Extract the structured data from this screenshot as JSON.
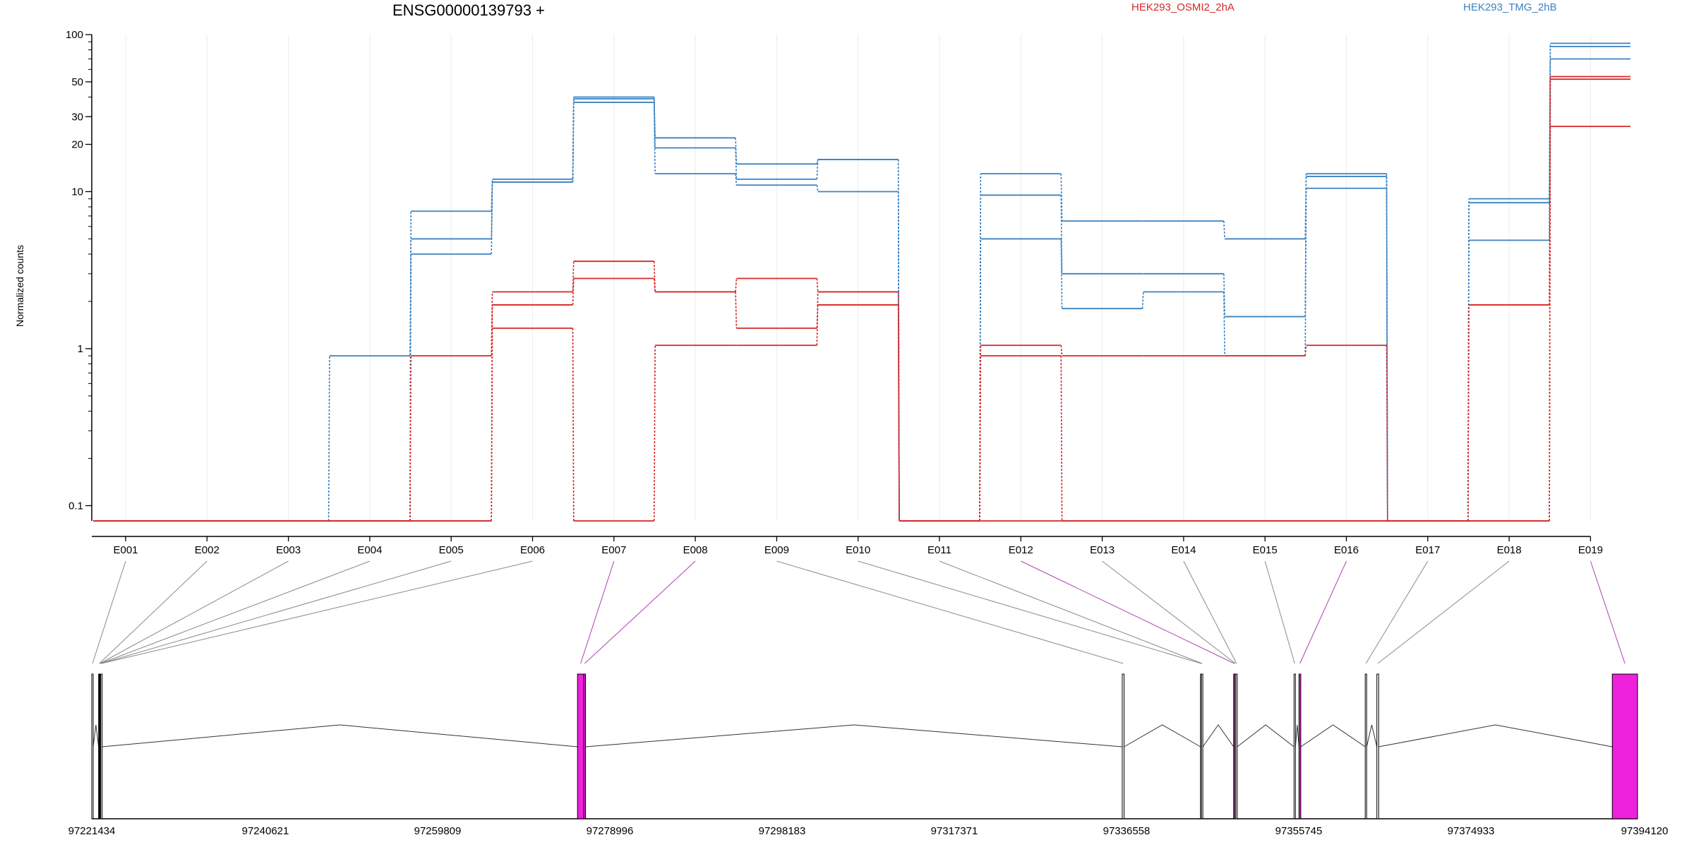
{
  "title": "ENSG00000139793 +",
  "legend": [
    {
      "label": "HEK293_OSMI2_2hA",
      "color": "#d62728"
    },
    {
      "label": "HEK293_TMG_2hB",
      "color": "#3a82c1"
    }
  ],
  "chart_data": {
    "type": "line",
    "scale": "log",
    "ylabel": "Normalized counts",
    "yticks": [
      "100",
      "50",
      "30",
      "20",
      "10",
      "1",
      "0.1"
    ],
    "ytick_values": [
      100,
      50,
      30,
      20,
      10,
      1,
      0.1
    ],
    "ylim": [
      0.08,
      100
    ],
    "categories": [
      "E001",
      "E002",
      "E003",
      "E004",
      "E005",
      "E006",
      "E007",
      "E008",
      "E009",
      "E010",
      "E011",
      "E012",
      "E013",
      "E014",
      "E015",
      "E016",
      "E017",
      "E018",
      "E019"
    ],
    "series": [
      {
        "color": "#3a82c1",
        "values": [
          0.08,
          0.08,
          0.08,
          0.08,
          7.5,
          11.5,
          39,
          22,
          15,
          16,
          0.08,
          13,
          6.5,
          6.5,
          5,
          13,
          0.08,
          9,
          88
        ]
      },
      {
        "color": "#3a82c1",
        "values": [
          0.08,
          0.08,
          0.08,
          0.08,
          5,
          12,
          40,
          19,
          12,
          16,
          0.08,
          9.5,
          3,
          3,
          1.6,
          12.5,
          0.08,
          8.5,
          84
        ]
      },
      {
        "color": "#3a82c1",
        "values": [
          0.08,
          0.08,
          0.08,
          0.9,
          4,
          11.5,
          37,
          13,
          11,
          10,
          0.08,
          5,
          1.8,
          2.3,
          0.9,
          10.5,
          0.08,
          4.9,
          70
        ]
      },
      {
        "color": "#d62728",
        "values": [
          0.08,
          0.08,
          0.08,
          0.08,
          0.9,
          2.3,
          3.6,
          2.3,
          2.8,
          2.3,
          0.08,
          1.05,
          0.9,
          0.9,
          0.9,
          1.05,
          0.08,
          0.08,
          54
        ]
      },
      {
        "color": "#d62728",
        "values": [
          0.08,
          0.08,
          0.08,
          0.08,
          0.08,
          1.9,
          2.8,
          2.3,
          1.35,
          1.9,
          0.08,
          0.9,
          0.08,
          0.08,
          0.08,
          0.08,
          0.08,
          1.9,
          52
        ]
      },
      {
        "color": "#d62728",
        "values": [
          0.08,
          0.08,
          0.08,
          0.08,
          0.08,
          1.35,
          0.08,
          1.05,
          1.05,
          2.3,
          0.08,
          0.08,
          0.08,
          0.08,
          0.08,
          0.08,
          0.08,
          0.08,
          26
        ]
      }
    ],
    "gene_model": {
      "coord_labels": [
        "97221434",
        "97240621",
        "97259809",
        "97278996",
        "97298183",
        "97317371",
        "97336558",
        "97355745",
        "97374933",
        "97394120"
      ],
      "coord_range": [
        97221434,
        97394120
      ],
      "exon_color": "#ee22dd",
      "exons": [
        {
          "id": "E001",
          "start": 97221434,
          "end": 97221500,
          "highlight": false
        },
        {
          "id": "E002",
          "start": 97222200,
          "end": 97222260,
          "highlight": false
        },
        {
          "id": "E003",
          "start": 97222260,
          "end": 97222320,
          "highlight": false
        },
        {
          "id": "E004",
          "start": 97222320,
          "end": 97222380,
          "highlight": false
        },
        {
          "id": "E005",
          "start": 97222380,
          "end": 97222440,
          "highlight": false
        },
        {
          "id": "E006",
          "start": 97222440,
          "end": 97222500,
          "highlight": false
        },
        {
          "id": "E007",
          "start": 97275700,
          "end": 97276400,
          "highlight": true
        },
        {
          "id": "E008",
          "start": 97276400,
          "end": 97276600,
          "highlight": true
        },
        {
          "id": "E009",
          "start": 97336558,
          "end": 97336760,
          "highlight": false
        },
        {
          "id": "E010",
          "start": 97345300,
          "end": 97345400,
          "highlight": false
        },
        {
          "id": "E011",
          "start": 97345400,
          "end": 97345500,
          "highlight": false
        },
        {
          "id": "E012",
          "start": 97349000,
          "end": 97349120,
          "highlight": true
        },
        {
          "id": "E013",
          "start": 97349120,
          "end": 97349240,
          "highlight": false
        },
        {
          "id": "E014",
          "start": 97349240,
          "end": 97349360,
          "highlight": false
        },
        {
          "id": "E015",
          "start": 97355745,
          "end": 97355900,
          "highlight": false
        },
        {
          "id": "E016",
          "start": 97356300,
          "end": 97356500,
          "highlight": true
        },
        {
          "id": "E017",
          "start": 97363700,
          "end": 97363850,
          "highlight": false
        },
        {
          "id": "E018",
          "start": 97365000,
          "end": 97365200,
          "highlight": false
        },
        {
          "id": "E019",
          "start": 97391300,
          "end": 97394120,
          "highlight": true
        }
      ]
    }
  }
}
